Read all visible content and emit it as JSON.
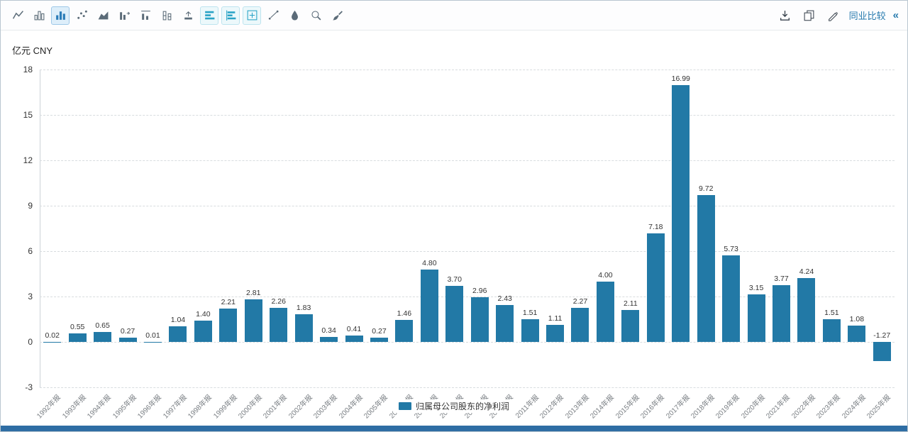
{
  "toolbar": {
    "left_icons": [
      {
        "name": "line-chart",
        "state": "normal"
      },
      {
        "name": "column-chart",
        "state": "normal"
      },
      {
        "name": "column-chart-filled",
        "state": "active"
      },
      {
        "name": "scatter-chart",
        "state": "normal"
      },
      {
        "name": "area-chart",
        "state": "normal"
      },
      {
        "name": "bar-marker-right",
        "state": "normal"
      },
      {
        "name": "bar-topline",
        "state": "normal"
      },
      {
        "name": "stacked-column",
        "state": "normal"
      },
      {
        "name": "bar-arrow-up",
        "state": "normal"
      },
      {
        "name": "hbar",
        "state": "teal"
      },
      {
        "name": "hbar-axis",
        "state": "teal"
      },
      {
        "name": "grid-plus",
        "state": "teal"
      },
      {
        "name": "trend-line",
        "state": "normal"
      },
      {
        "name": "fill-color",
        "state": "normal"
      },
      {
        "name": "zoom-area",
        "state": "normal"
      },
      {
        "name": "brush",
        "state": "normal"
      }
    ],
    "right_icons": [
      {
        "name": "download",
        "state": "normal"
      },
      {
        "name": "copy",
        "state": "normal"
      },
      {
        "name": "edit-chart",
        "state": "normal"
      }
    ],
    "right": {
      "compare_label": "同业比较",
      "collapse_glyph": "«"
    }
  },
  "chart_data": {
    "type": "bar",
    "title": "",
    "ylabel": "亿元 CNY",
    "xlabel": "",
    "ylim": [
      -3,
      18
    ],
    "yticks": [
      -3,
      0,
      3,
      6,
      9,
      12,
      15,
      18
    ],
    "grid": true,
    "legend_position": "bottom",
    "categories": [
      "1992年报",
      "1993年报",
      "1994年报",
      "1995年报",
      "1996年报",
      "1997年报",
      "1998年报",
      "1999年报",
      "2000年报",
      "2001年报",
      "2002年报",
      "2003年报",
      "2004年报",
      "2005年报",
      "2006年报",
      "2007年报",
      "2008年报",
      "2009年报",
      "2010年报",
      "2011年报",
      "2012年报",
      "2013年报",
      "2014年报",
      "2015年报",
      "2016年报",
      "2017年报",
      "2018年报",
      "2019年报",
      "2020年报",
      "2021年报",
      "2022年报",
      "2023年报",
      "2024年报",
      "2025年报"
    ],
    "series": [
      {
        "name": "归属母公司股东的净利润",
        "color": "#2279a6",
        "values": [
          0.02,
          0.55,
          0.65,
          0.27,
          0.01,
          1.04,
          1.4,
          2.21,
          2.81,
          2.26,
          1.83,
          0.34,
          0.41,
          0.27,
          1.46,
          4.8,
          3.7,
          2.96,
          2.43,
          1.51,
          1.11,
          2.27,
          4.0,
          2.11,
          7.18,
          16.99,
          9.72,
          5.73,
          3.15,
          3.77,
          4.24,
          1.51,
          1.08,
          -1.27
        ]
      }
    ]
  },
  "colors": {
    "bar": "#2279a6",
    "accent_link": "#2579ad",
    "teal_icon": "#29a3c6",
    "bottom_bar": "#2e6da4"
  }
}
